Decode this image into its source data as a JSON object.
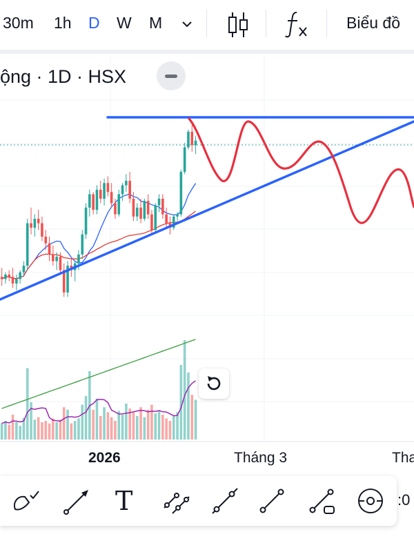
{
  "toolbar_top": {
    "timeframes": [
      "30m",
      "1h",
      "D",
      "W",
      "M"
    ],
    "active_timeframe": "D",
    "chart_type_label": "Biểu đồ"
  },
  "symbol": {
    "label": "ộng · 1D · HSX"
  },
  "colors": {
    "up": "#26a69a",
    "down": "#ef5350",
    "trendline": "#2962ff",
    "sketch": "#e8303f",
    "ma_short": "#2962ff",
    "ma_long": "#e53935",
    "volume_ma": "#43a047",
    "volume_ma_short": "#9c27b0"
  },
  "chart_data": {
    "type": "candlestick",
    "x_ticks": [
      "2026",
      "Tháng 3",
      "Tha"
    ],
    "grid": true,
    "candles": [
      [
        43.2,
        43.6,
        42.8,
        43.1
      ],
      [
        43.1,
        43.4,
        42.9,
        43.3
      ],
      [
        43.3,
        43.5,
        43.0,
        43.2
      ],
      [
        43.2,
        43.6,
        42.7,
        42.9
      ],
      [
        42.9,
        43.3,
        42.6,
        43.1
      ],
      [
        43.1,
        43.5,
        42.9,
        43.4
      ],
      [
        43.4,
        43.9,
        43.2,
        43.7
      ],
      [
        43.7,
        45.8,
        43.5,
        45.6
      ],
      [
        45.6,
        46.3,
        45.1,
        45.4
      ],
      [
        45.4,
        46.0,
        45.0,
        45.8
      ],
      [
        45.8,
        46.2,
        45.3,
        45.6
      ],
      [
        45.6,
        45.9,
        44.8,
        45.0
      ],
      [
        45.0,
        45.3,
        44.4,
        44.7
      ],
      [
        44.7,
        45.0,
        43.9,
        44.2
      ],
      [
        44.2,
        44.6,
        43.7,
        43.9
      ],
      [
        43.9,
        44.3,
        43.5,
        44.1
      ],
      [
        44.1,
        44.3,
        43.3,
        43.5
      ],
      [
        43.5,
        43.8,
        42.3,
        42.5
      ],
      [
        42.5,
        43.9,
        42.3,
        43.7
      ],
      [
        43.7,
        44.0,
        43.2,
        43.5
      ],
      [
        43.5,
        43.9,
        43.0,
        43.8
      ],
      [
        43.8,
        44.4,
        43.5,
        44.2
      ],
      [
        44.2,
        45.3,
        44.0,
        45.1
      ],
      [
        45.1,
        46.5,
        44.9,
        46.3
      ],
      [
        46.3,
        47.1,
        45.9,
        46.9
      ],
      [
        46.9,
        47.0,
        46.0,
        46.2
      ],
      [
        46.2,
        47.3,
        46.0,
        47.1
      ],
      [
        47.1,
        47.5,
        46.5,
        46.7
      ],
      [
        46.7,
        47.6,
        46.4,
        47.4
      ],
      [
        47.4,
        47.7,
        46.8,
        47.0
      ],
      [
        47.0,
        47.4,
        46.3,
        46.5
      ],
      [
        46.5,
        46.7,
        45.8,
        46.0
      ],
      [
        46.0,
        47.1,
        45.9,
        46.9
      ],
      [
        46.9,
        47.4,
        46.6,
        47.3
      ],
      [
        47.3,
        47.8,
        47.0,
        47.5
      ],
      [
        47.5,
        47.9,
        46.5,
        46.7
      ],
      [
        46.7,
        47.0,
        45.7,
        45.9
      ],
      [
        45.9,
        46.5,
        45.7,
        46.3
      ],
      [
        46.3,
        46.7,
        45.6,
        45.8
      ],
      [
        45.8,
        46.7,
        45.7,
        46.6
      ],
      [
        46.6,
        46.9,
        45.8,
        46.0
      ],
      [
        46.0,
        46.2,
        45.1,
        45.3
      ],
      [
        45.3,
        46.5,
        45.2,
        46.4
      ],
      [
        46.4,
        46.9,
        46.1,
        46.7
      ],
      [
        46.7,
        46.9,
        45.8,
        46.0
      ],
      [
        46.0,
        46.3,
        45.4,
        45.6
      ],
      [
        45.6,
        45.9,
        45.1,
        45.4
      ],
      [
        45.4,
        46.0,
        45.3,
        45.9
      ],
      [
        45.9,
        46.1,
        45.7,
        46.0
      ],
      [
        46.0,
        48.0,
        45.9,
        47.9
      ],
      [
        47.9,
        49.2,
        47.8,
        49.0
      ],
      [
        49.0,
        49.8,
        48.9,
        49.7
      ],
      [
        49.7,
        50.0,
        48.8,
        49.1
      ],
      [
        49.1,
        49.5,
        48.7,
        49.3
      ]
    ],
    "volume_bars": [
      [
        26,
        0
      ],
      [
        30,
        0
      ],
      [
        24,
        1
      ],
      [
        40,
        1
      ],
      [
        28,
        0
      ],
      [
        22,
        0
      ],
      [
        35,
        0
      ],
      [
        115,
        0
      ],
      [
        60,
        0
      ],
      [
        32,
        0
      ],
      [
        36,
        1
      ],
      [
        28,
        1
      ],
      [
        30,
        1
      ],
      [
        26,
        1
      ],
      [
        34,
        1
      ],
      [
        28,
        0
      ],
      [
        32,
        1
      ],
      [
        52,
        1
      ],
      [
        48,
        0
      ],
      [
        26,
        1
      ],
      [
        30,
        0
      ],
      [
        34,
        0
      ],
      [
        56,
        0
      ],
      [
        70,
        0
      ],
      [
        110,
        0
      ],
      [
        48,
        1
      ],
      [
        66,
        0
      ],
      [
        38,
        1
      ],
      [
        52,
        0
      ],
      [
        44,
        1
      ],
      [
        36,
        1
      ],
      [
        30,
        1
      ],
      [
        46,
        0
      ],
      [
        40,
        0
      ],
      [
        58,
        0
      ],
      [
        50,
        1
      ],
      [
        44,
        1
      ],
      [
        38,
        0
      ],
      [
        52,
        1
      ],
      [
        36,
        0
      ],
      [
        48,
        1
      ],
      [
        56,
        1
      ],
      [
        42,
        0
      ],
      [
        46,
        0
      ],
      [
        40,
        1
      ],
      [
        34,
        1
      ],
      [
        30,
        1
      ],
      [
        38,
        0
      ],
      [
        44,
        0
      ],
      [
        120,
        0
      ],
      [
        160,
        0
      ],
      [
        108,
        0
      ],
      [
        72,
        1
      ],
      [
        64,
        0
      ]
    ]
  }
}
